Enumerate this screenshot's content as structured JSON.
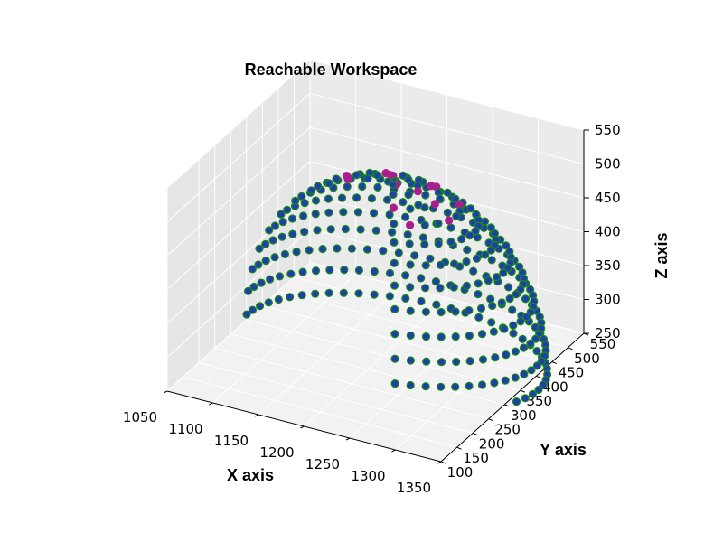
{
  "chart_data": {
    "type": "scatter",
    "projection": "3d",
    "title": "Reachable Workspace",
    "xlabel": "X axis",
    "ylabel": "Y axis",
    "zlabel": "Z axis",
    "xlim": [
      1050,
      1350
    ],
    "ylim": [
      100,
      550
    ],
    "zlim": [
      250,
      550
    ],
    "xticks": [
      1050,
      1100,
      1150,
      1200,
      1250,
      1300,
      1350
    ],
    "yticks": [
      100,
      150,
      200,
      250,
      300,
      350,
      400,
      450,
      500,
      550
    ],
    "zticks": [
      250,
      300,
      350,
      400,
      450,
      500,
      550
    ],
    "grid": true,
    "shape": "dome-shaped cap of sample points, open on the near side, top near z=500, base near z=250",
    "series": [
      {
        "marker_face": "#1f3fa8",
        "marker_edge": "#1a8a1a",
        "kind": "reachable points"
      },
      {
        "marker_face": "#a0218f",
        "marker_edge": "#b81c8c",
        "kind": "highlighted points near the top"
      }
    ],
    "colors": {
      "pane": "#ececec",
      "pane_grid": "#ffffff"
    }
  }
}
